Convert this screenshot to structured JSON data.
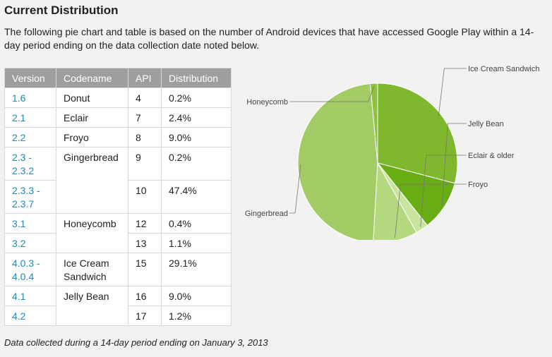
{
  "page": {
    "title": "Current Distribution",
    "intro": "The following pie chart and table is based on the number of Android devices that have accessed Google Play within a 14-day period ending on the data collection date noted below.",
    "footer": "Data collected during a 14-day period ending on January 3, 2013"
  },
  "table": {
    "headers": [
      "Version",
      "Codename",
      "API",
      "Distribution"
    ],
    "rows": [
      {
        "version": "1.6",
        "codename": "Donut",
        "api": "4",
        "dist": "0.2%"
      },
      {
        "version": "2.1",
        "codename": "Eclair",
        "api": "7",
        "dist": "2.4%"
      },
      {
        "version": "2.2",
        "codename": "Froyo",
        "api": "8",
        "dist": "9.0%"
      },
      {
        "version": "2.3 - 2.3.2",
        "codename": "Gingerbread",
        "api": "9",
        "dist": "0.2%"
      },
      {
        "version": "2.3.3 - 2.3.7",
        "codename": "",
        "api": "10",
        "dist": "47.4%"
      },
      {
        "version": "3.1",
        "codename": "Honeycomb",
        "api": "12",
        "dist": "0.4%"
      },
      {
        "version": "3.2",
        "codename": "",
        "api": "13",
        "dist": "1.1%"
      },
      {
        "version": "4.0.3 - 4.0.4",
        "codename": "Ice Cream Sandwich",
        "api": "15",
        "dist": "29.1%"
      },
      {
        "version": "4.1",
        "codename": "Jelly Bean",
        "api": "16",
        "dist": "9.0%"
      },
      {
        "version": "4.2",
        "codename": "",
        "api": "17",
        "dist": "1.2%"
      }
    ]
  },
  "chart_data": {
    "type": "pie",
    "slices": [
      {
        "label": "Ice Cream Sandwich",
        "value": 29.1,
        "color": "#7fb82d"
      },
      {
        "label": "Jelly Bean",
        "value": 10.2,
        "color": "#68ad14"
      },
      {
        "label": "Eclair & older",
        "value": 2.6,
        "color": "#c8e59f"
      },
      {
        "label": "Froyo",
        "value": 9.0,
        "color": "#b4d97f"
      },
      {
        "label": "Gingerbread",
        "value": 47.6,
        "color": "#a3cc66"
      },
      {
        "label": "Honeycomb",
        "value": 1.5,
        "color": "#8fc23f"
      }
    ],
    "label_color": "#444444",
    "leader_color": "#777777"
  }
}
